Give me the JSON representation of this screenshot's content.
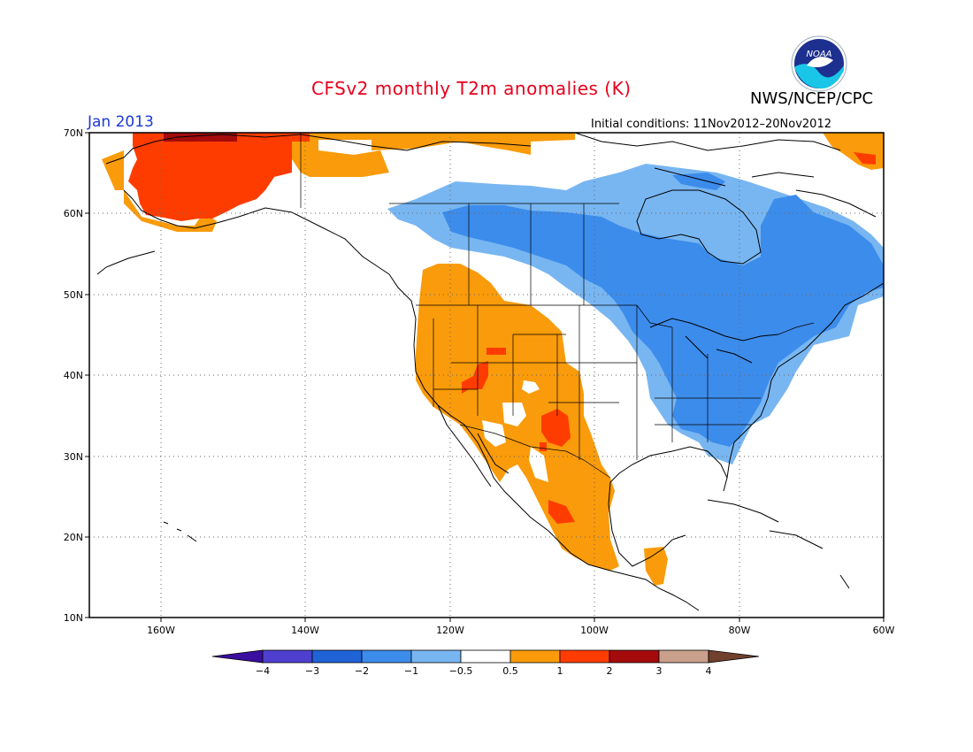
{
  "title": "CFSv2 monthly T2m anomalies (K)",
  "agency": "NWS/NCEP/CPC",
  "logo_text": "NOAA",
  "forecast_month": "Jan 2013",
  "initial_conditions": "Initial conditions: 11Nov2012–20Nov2012",
  "axes": {
    "lat_labels": [
      "70N",
      "60N",
      "50N",
      "40N",
      "30N",
      "20N",
      "10N"
    ],
    "lon_labels": [
      "160W",
      "140W",
      "120W",
      "100W",
      "80W",
      "60W"
    ],
    "lat_range": [
      10,
      70
    ],
    "lon_range": [
      -172,
      -60
    ],
    "grid": "dotted"
  },
  "colorbar": {
    "labels": [
      "−4",
      "−3",
      "−2",
      "−1",
      "−0.5",
      "0.5",
      "1",
      "2",
      "3",
      "4"
    ],
    "colors": [
      "#3a0ea0",
      "#4f3fd0",
      "#1f63d6",
      "#3c8ceb",
      "#78b6f2",
      "#ffffff",
      "#f99b0a",
      "#ff3c00",
      "#a50b0b",
      "#c9a08c",
      "#70412e"
    ]
  },
  "regions": [
    {
      "name": "Alaska warm anomaly",
      "category": "1 to 2",
      "color": "#ff3c00"
    },
    {
      "name": "Western US / Mexico warm anomaly",
      "category": "0.5 to 1",
      "color": "#f99b0a"
    },
    {
      "name": "Canada cool anomaly",
      "category": "-1 to -0.5",
      "color": "#78b6f2"
    },
    {
      "name": "Eastern US / Quebec cool anomaly",
      "category": "-2 to -1",
      "color": "#3c8ceb"
    }
  ]
}
